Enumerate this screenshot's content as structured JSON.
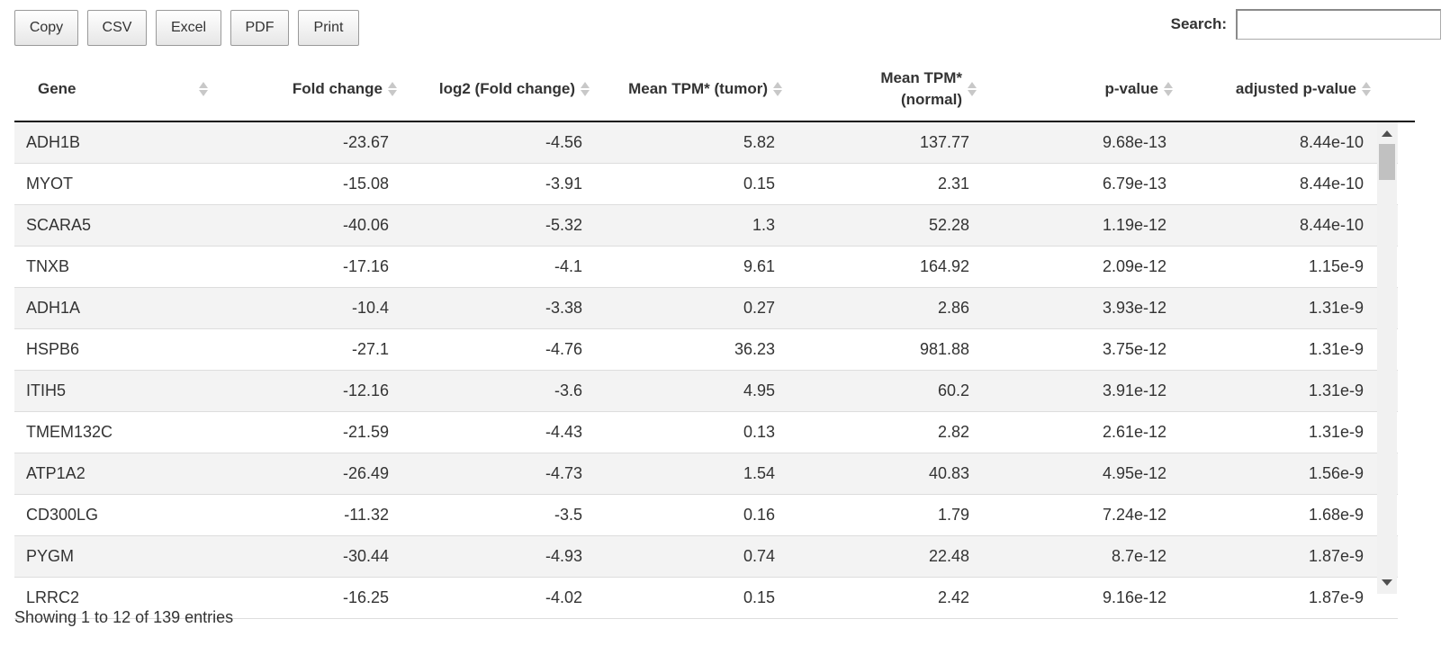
{
  "buttons": {
    "copy": "Copy",
    "csv": "CSV",
    "excel": "Excel",
    "pdf": "PDF",
    "print": "Print"
  },
  "search": {
    "label": "Search:",
    "value": ""
  },
  "columns": {
    "gene": "Gene",
    "fold_change": "Fold change",
    "log2_fold_change": "log2 (Fold change)",
    "mean_tpm_tumor": "Mean TPM* (tumor)",
    "mean_tpm_normal_line1": "Mean TPM*",
    "mean_tpm_normal_line2": "(normal)",
    "p_value": "p-value",
    "adjusted_p_value": "adjusted p-value"
  },
  "rows": [
    [
      "ADH1B",
      "-23.67",
      "-4.56",
      "5.82",
      "137.77",
      "9.68e-13",
      "8.44e-10"
    ],
    [
      "MYOT",
      "-15.08",
      "-3.91",
      "0.15",
      "2.31",
      "6.79e-13",
      "8.44e-10"
    ],
    [
      "SCARA5",
      "-40.06",
      "-5.32",
      "1.3",
      "52.28",
      "1.19e-12",
      "8.44e-10"
    ],
    [
      "TNXB",
      "-17.16",
      "-4.1",
      "9.61",
      "164.92",
      "2.09e-12",
      "1.15e-9"
    ],
    [
      "ADH1A",
      "-10.4",
      "-3.38",
      "0.27",
      "2.86",
      "3.93e-12",
      "1.31e-9"
    ],
    [
      "HSPB6",
      "-27.1",
      "-4.76",
      "36.23",
      "981.88",
      "3.75e-12",
      "1.31e-9"
    ],
    [
      "ITIH5",
      "-12.16",
      "-3.6",
      "4.95",
      "60.2",
      "3.91e-12",
      "1.31e-9"
    ],
    [
      "TMEM132C",
      "-21.59",
      "-4.43",
      "0.13",
      "2.82",
      "2.61e-12",
      "1.31e-9"
    ],
    [
      "ATP1A2",
      "-26.49",
      "-4.73",
      "1.54",
      "40.83",
      "4.95e-12",
      "1.56e-9"
    ],
    [
      "CD300LG",
      "-11.32",
      "-3.5",
      "0.16",
      "1.79",
      "7.24e-12",
      "1.68e-9"
    ],
    [
      "PYGM",
      "-30.44",
      "-4.93",
      "0.74",
      "22.48",
      "8.7e-12",
      "1.87e-9"
    ],
    [
      "LRRC2",
      "-16.25",
      "-4.02",
      "0.15",
      "2.42",
      "9.16e-12",
      "1.87e-9"
    ]
  ],
  "info": "Showing 1 to 12 of 139 entries"
}
